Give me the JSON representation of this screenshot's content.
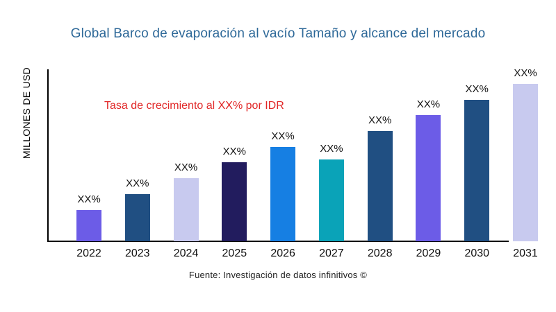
{
  "chart_data": {
    "type": "bar",
    "title": "Global Barco de evaporación al vacío Tamaño y alcance del mercado",
    "title_color": "#2d6898",
    "ylabel": "MILLONES DE USD",
    "xlabel": "",
    "categories": [
      "2022",
      "2023",
      "2024",
      "2025",
      "2026",
      "2027",
      "2028",
      "2029",
      "2030",
      "2031"
    ],
    "bar_labels": [
      "XX%",
      "XX%",
      "XX%",
      "XX%",
      "XX%",
      "XX%",
      "XX%",
      "XX%",
      "XX%",
      "XX%"
    ],
    "relative_heights_pct_of_max": [
      20,
      30,
      40,
      50,
      60,
      52,
      70,
      80,
      90,
      100
    ],
    "bar_colors": [
      "#6c5ce7",
      "#204f82",
      "#c8caef",
      "#221c5e",
      "#167fe3",
      "#0aa3b8",
      "#204f82",
      "#6c5ce7",
      "#204f82",
      "#c8caef"
    ],
    "annotation": "Tasa de crecimiento al XX% por IDR",
    "annotation_color": "#e12626",
    "axis_color": "#000000",
    "grid": false,
    "legend_position": "none",
    "source": "Fuente: Investigación de datos infinitivos ©"
  }
}
